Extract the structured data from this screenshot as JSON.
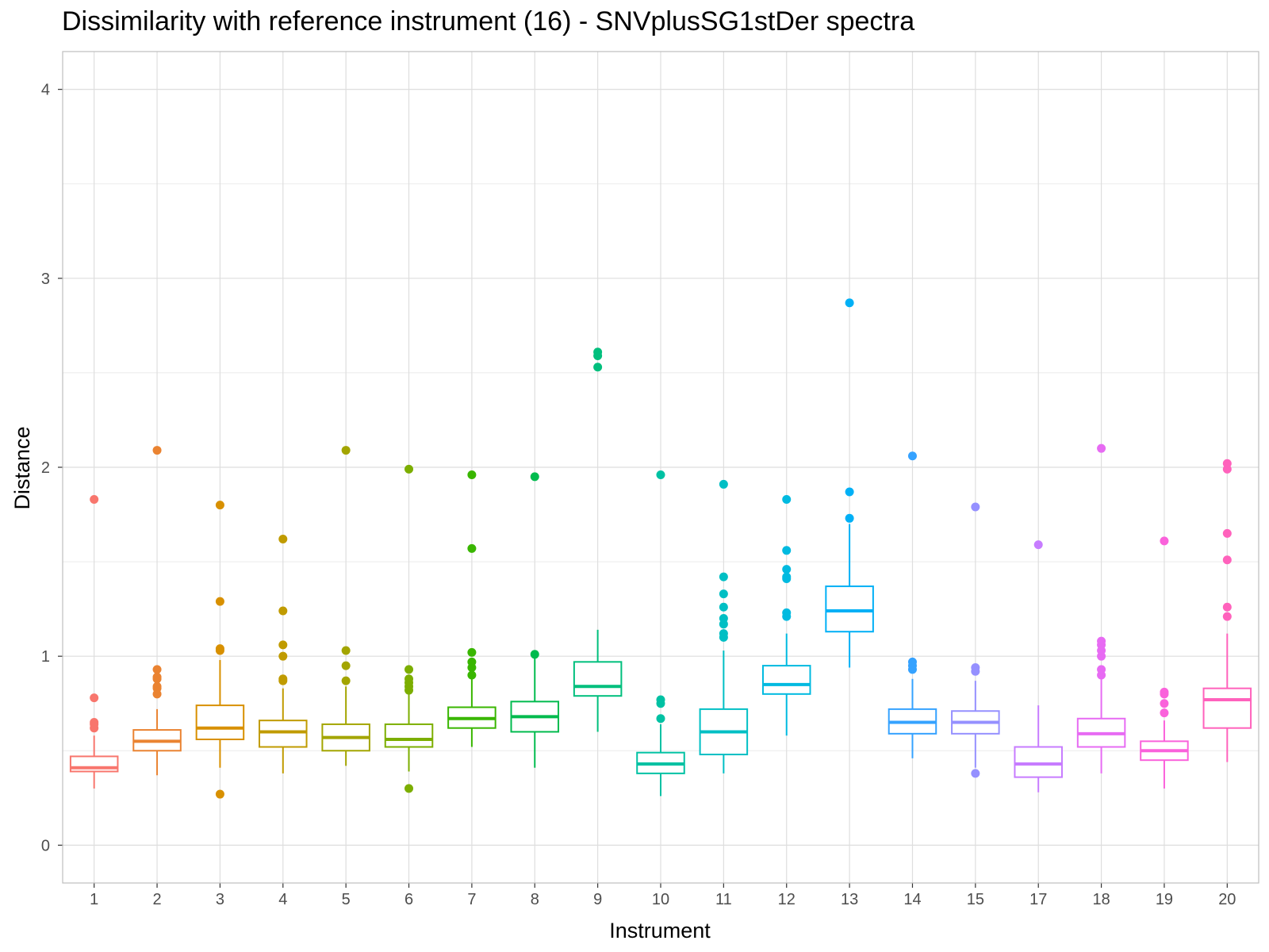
{
  "chart_data": {
    "type": "boxplot",
    "title": "Dissimilarity with reference instrument (16) - SNVplusSG1stDer spectra",
    "xlabel": "Instrument",
    "ylabel": "Distance",
    "ylim": [
      -0.2,
      4.2
    ],
    "yticks": [
      0,
      1,
      2,
      3,
      4
    ],
    "grid": true,
    "legend": "none",
    "categories": [
      "1",
      "2",
      "3",
      "4",
      "5",
      "6",
      "7",
      "8",
      "9",
      "10",
      "11",
      "12",
      "13",
      "14",
      "15",
      "17",
      "18",
      "19",
      "20"
    ],
    "colors": [
      "#F8766D",
      "#EA8331",
      "#D89000",
      "#C09B00",
      "#A3A500",
      "#7CAE00",
      "#39B600",
      "#00BB4E",
      "#00BF7D",
      "#00C1A3",
      "#00BFC4",
      "#00BAE0",
      "#00B0F6",
      "#35A2FF",
      "#9590FF",
      "#C77CFF",
      "#E76BF3",
      "#FA62DB",
      "#FF62BC"
    ],
    "boxes": [
      {
        "category": "1",
        "min": 0.3,
        "q1": 0.39,
        "median": 0.41,
        "q3": 0.47,
        "max": 0.58,
        "outliers": [
          0.62,
          0.64,
          0.65,
          0.78,
          1.83
        ]
      },
      {
        "category": "2",
        "min": 0.37,
        "q1": 0.5,
        "median": 0.55,
        "q3": 0.61,
        "max": 0.72,
        "outliers": [
          0.8,
          0.83,
          0.84,
          0.88,
          0.89,
          0.93,
          2.09
        ]
      },
      {
        "category": "3",
        "min": 0.41,
        "q1": 0.56,
        "median": 0.62,
        "q3": 0.74,
        "max": 0.98,
        "outliers": [
          0.27,
          1.03,
          1.04,
          1.29,
          1.8
        ]
      },
      {
        "category": "4",
        "min": 0.38,
        "q1": 0.52,
        "median": 0.6,
        "q3": 0.66,
        "max": 0.83,
        "outliers": [
          0.87,
          0.88,
          1.0,
          1.06,
          1.24,
          1.62
        ]
      },
      {
        "category": "5",
        "min": 0.42,
        "q1": 0.5,
        "median": 0.57,
        "q3": 0.64,
        "max": 0.84,
        "outliers": [
          0.87,
          0.95,
          1.03,
          2.09
        ]
      },
      {
        "category": "6",
        "min": 0.39,
        "q1": 0.52,
        "median": 0.56,
        "q3": 0.64,
        "max": 0.8,
        "outliers": [
          0.3,
          0.82,
          0.84,
          0.86,
          0.88,
          0.93,
          1.99
        ]
      },
      {
        "category": "7",
        "min": 0.52,
        "q1": 0.62,
        "median": 0.67,
        "q3": 0.73,
        "max": 0.88,
        "outliers": [
          0.9,
          0.94,
          0.97,
          1.02,
          1.57,
          1.96
        ]
      },
      {
        "category": "8",
        "min": 0.41,
        "q1": 0.6,
        "median": 0.68,
        "q3": 0.76,
        "max": 1.0,
        "outliers": [
          1.01,
          1.95
        ]
      },
      {
        "category": "9",
        "min": 0.6,
        "q1": 0.79,
        "median": 0.84,
        "q3": 0.97,
        "max": 1.14,
        "outliers": [
          2.53,
          2.59,
          2.61
        ]
      },
      {
        "category": "10",
        "min": 0.26,
        "q1": 0.38,
        "median": 0.43,
        "q3": 0.49,
        "max": 0.64,
        "outliers": [
          0.67,
          0.75,
          0.77,
          1.96
        ]
      },
      {
        "category": "11",
        "min": 0.38,
        "q1": 0.48,
        "median": 0.6,
        "q3": 0.72,
        "max": 1.03,
        "outliers": [
          1.1,
          1.12,
          1.17,
          1.2,
          1.26,
          1.33,
          1.42,
          1.91
        ]
      },
      {
        "category": "12",
        "min": 0.58,
        "q1": 0.8,
        "median": 0.85,
        "q3": 0.95,
        "max": 1.12,
        "outliers": [
          1.21,
          1.23,
          1.41,
          1.42,
          1.46,
          1.56,
          1.83
        ]
      },
      {
        "category": "13",
        "min": 0.94,
        "q1": 1.13,
        "median": 1.24,
        "q3": 1.37,
        "max": 1.7,
        "outliers": [
          1.73,
          1.87,
          2.87
        ]
      },
      {
        "category": "14",
        "min": 0.46,
        "q1": 0.59,
        "median": 0.65,
        "q3": 0.72,
        "max": 0.88,
        "outliers": [
          0.93,
          0.95,
          0.97,
          2.06
        ]
      },
      {
        "category": "15",
        "min": 0.41,
        "q1": 0.59,
        "median": 0.65,
        "q3": 0.71,
        "max": 0.87,
        "outliers": [
          0.38,
          0.92,
          0.94,
          1.79
        ]
      },
      {
        "category": "17",
        "min": 0.28,
        "q1": 0.36,
        "median": 0.43,
        "q3": 0.52,
        "max": 0.74,
        "outliers": [
          1.59
        ]
      },
      {
        "category": "18",
        "min": 0.38,
        "q1": 0.52,
        "median": 0.59,
        "q3": 0.67,
        "max": 0.88,
        "outliers": [
          0.9,
          0.93,
          1.0,
          1.03,
          1.06,
          1.08,
          2.1
        ]
      },
      {
        "category": "19",
        "min": 0.3,
        "q1": 0.45,
        "median": 0.5,
        "q3": 0.55,
        "max": 0.66,
        "outliers": [
          0.7,
          0.75,
          0.8,
          0.81,
          1.61
        ]
      },
      {
        "category": "20",
        "min": 0.44,
        "q1": 0.62,
        "median": 0.77,
        "q3": 0.83,
        "max": 1.12,
        "outliers": [
          1.21,
          1.26,
          1.51,
          1.65,
          1.99,
          2.02
        ]
      }
    ]
  }
}
